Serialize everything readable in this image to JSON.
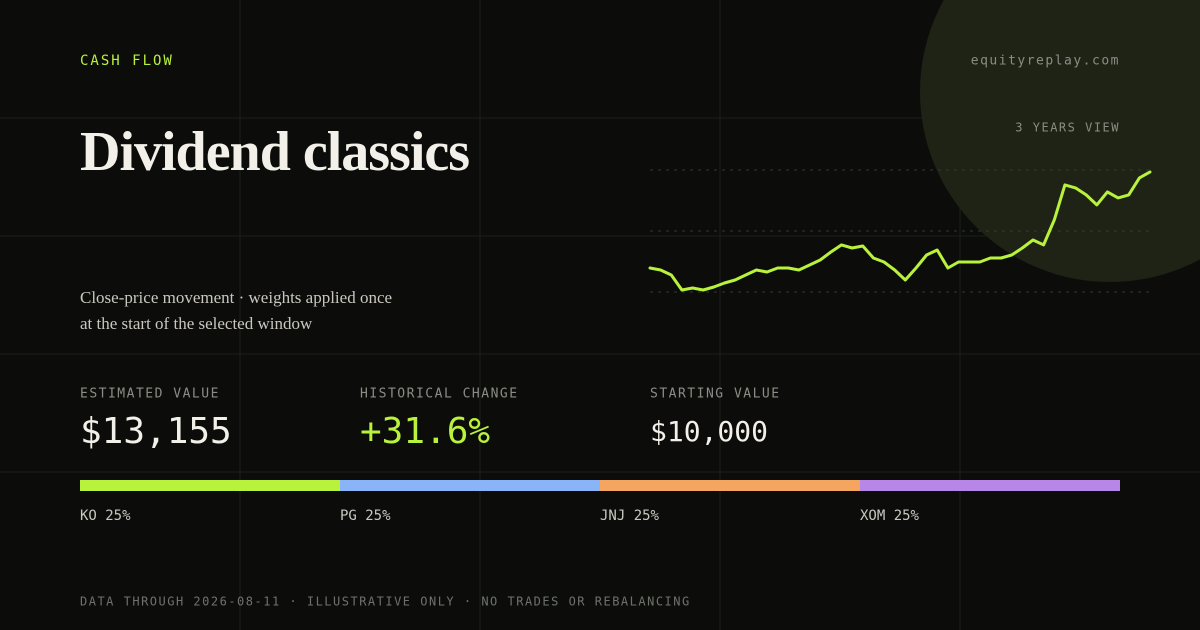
{
  "header": {
    "eyebrow": "CASH FLOW",
    "site": "equityreplay.com",
    "title": "Dividend classics",
    "view": "3 YEARS VIEW",
    "subtitle_lines": [
      "Close-price movement · weights applied once",
      "at the start of the selected window"
    ]
  },
  "sparkline": {
    "color": "#b9f23c",
    "values": [
      10000,
      9934,
      9770,
      9276,
      9342,
      9276,
      9375,
      9507,
      9605,
      9770,
      9934,
      9868,
      10000,
      10000,
      9934,
      10099,
      10263,
      10526,
      10757,
      10658,
      10724,
      10329,
      10197,
      9934,
      9605,
      10000,
      10428,
      10592,
      10000,
      10197,
      10197,
      10197,
      10329,
      10329,
      10428,
      10658,
      10921,
      10757,
      11579,
      12731,
      12632,
      12402,
      12073,
      12500,
      12303,
      12402,
      12961,
      13155
    ]
  },
  "stats": [
    {
      "label": "ESTIMATED VALUE",
      "value": "$13,155",
      "color": "#f2f0e8"
    },
    {
      "label": "HISTORICAL CHANGE",
      "value": "+31.6%",
      "color": "#b9f23c"
    },
    {
      "label": "STARTING VALUE",
      "value": "$10,000",
      "color": "#f2f0e8"
    }
  ],
  "allocations": [
    {
      "ticker": "KO",
      "weight": 25,
      "weight_label": "25%",
      "color": "#b9f23c"
    },
    {
      "ticker": "PG",
      "weight": 25,
      "weight_label": "25%",
      "color": "#8ab4f8"
    },
    {
      "ticker": "JNJ",
      "weight": 25,
      "weight_label": "25%",
      "color": "#f4a55f"
    },
    {
      "ticker": "XOM",
      "weight": 25,
      "weight_label": "25%",
      "color": "#b886e6"
    }
  ],
  "footer": "DATA THROUGH 2026-08-11 · ILLUSTRATIVE ONLY · NO TRADES OR REBALANCING"
}
